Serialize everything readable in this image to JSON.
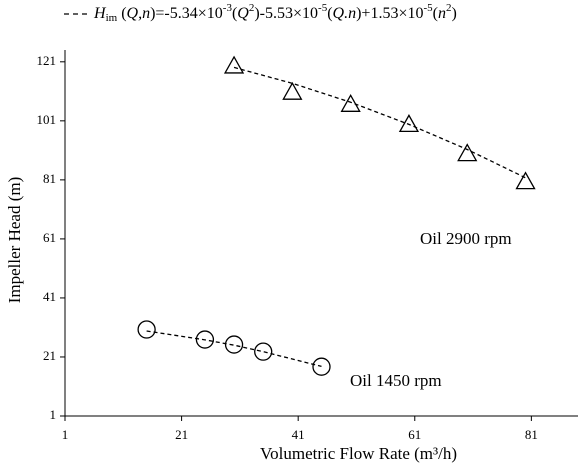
{
  "chart_data": {
    "type": "scatter",
    "x_label": "Volumetric Flow Rate (m³/h)",
    "y_label": "Impeller Head (m)",
    "fit_legend": [
      "H",
      "im",
      " (",
      "Q,n",
      ")=-5.34×10",
      "-3",
      "(",
      "Q",
      "2",
      ")-5.53×10",
      "-5",
      "(",
      "Q.n",
      ")+1.53×10",
      "-5",
      "(",
      "n",
      "2",
      ")"
    ],
    "xlim": [
      1,
      89
    ],
    "ylim": [
      1,
      125
    ],
    "xticks": [
      1,
      21,
      41,
      61,
      81
    ],
    "yticks": [
      1,
      21,
      41,
      61,
      81,
      101,
      121
    ],
    "series": [
      {
        "name": "Oil 2900 rpm",
        "color": "#000000",
        "marker": "triangle",
        "x": [
          30,
          40,
          50,
          60,
          70,
          80
        ],
        "values": [
          119.6,
          110.7,
          106.6,
          99.8,
          89.9,
          80.4
        ],
        "fit_values": [
          119.1,
          113.7,
          107.3,
          99.8,
          91.3,
          81.7
        ]
      },
      {
        "name": "Oil 1450 rpm",
        "color": "#000000",
        "marker": "circle",
        "x": [
          15,
          25,
          30,
          35,
          45
        ],
        "values": [
          30.3,
          26.9,
          25.2,
          22.8,
          17.7
        ],
        "fit_values": [
          29.8,
          26.8,
          25.0,
          22.8,
          17.8
        ]
      }
    ]
  }
}
